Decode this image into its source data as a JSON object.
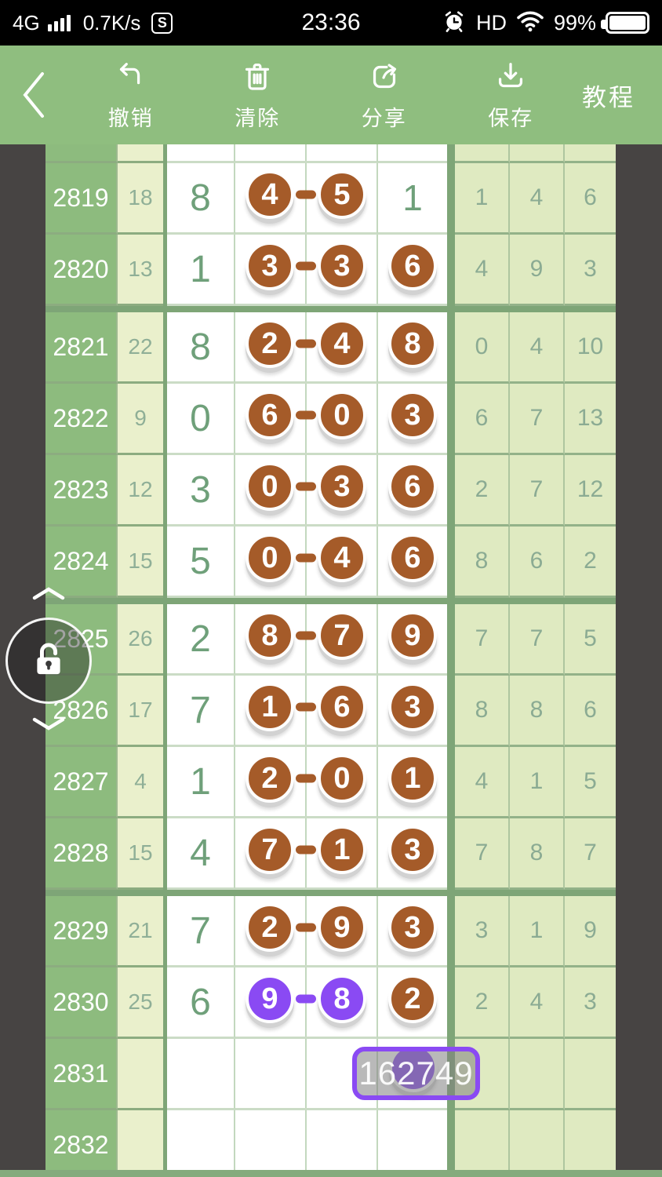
{
  "status_bar": {
    "network": "4G",
    "speed": "0.7K/s",
    "sim_badge": "S",
    "time": "23:36",
    "volte": "HD",
    "battery_percent": "99%"
  },
  "toolbar": {
    "buttons": [
      {
        "label": "撤销"
      },
      {
        "label": "清除"
      },
      {
        "label": "分享"
      },
      {
        "label": "保存"
      }
    ],
    "tutorial_label": "教程"
  },
  "colors": {
    "toolbar_green": "#8FBE7F",
    "period_green": "#8DBB7E",
    "count_bg": "#EAF0CC",
    "stats_bg": "#DFEAC1",
    "circle_brown": "#A55B29",
    "circle_purple": "#8A4AF3",
    "digit_green": "#6FA07A",
    "badge_border": "#8A4AF3",
    "app_background": "#474443"
  },
  "table": {
    "rows": [
      {
        "period": "2819",
        "count": "18",
        "first": "8",
        "pair": [
          "4",
          "5"
        ],
        "pair_style": "brown",
        "third": {
          "value": "1",
          "circled": false
        },
        "stats": [
          "1",
          "4",
          "6"
        ]
      },
      {
        "period": "2820",
        "count": "13",
        "first": "1",
        "pair": [
          "3",
          "3"
        ],
        "pair_style": "brown",
        "third": {
          "value": "6",
          "circled": true
        },
        "stats": [
          "4",
          "9",
          "3"
        ]
      },
      {
        "period": "2821",
        "count": "22",
        "first": "8",
        "pair": [
          "2",
          "4"
        ],
        "pair_style": "brown",
        "third": {
          "value": "8",
          "circled": true
        },
        "stats": [
          "0",
          "4",
          "10"
        ],
        "thick_before": true
      },
      {
        "period": "2822",
        "count": "9",
        "first": "0",
        "pair": [
          "6",
          "0"
        ],
        "pair_style": "brown",
        "third": {
          "value": "3",
          "circled": true
        },
        "stats": [
          "6",
          "7",
          "13"
        ]
      },
      {
        "period": "2823",
        "count": "12",
        "first": "3",
        "pair": [
          "0",
          "3"
        ],
        "pair_style": "brown",
        "third": {
          "value": "6",
          "circled": true
        },
        "stats": [
          "2",
          "7",
          "12"
        ]
      },
      {
        "period": "2824",
        "count": "15",
        "first": "5",
        "pair": [
          "0",
          "4"
        ],
        "pair_style": "brown",
        "third": {
          "value": "6",
          "circled": true
        },
        "stats": [
          "8",
          "6",
          "2"
        ]
      },
      {
        "period": "2825",
        "count": "26",
        "first": "2",
        "pair": [
          "8",
          "7"
        ],
        "pair_style": "brown",
        "third": {
          "value": "9",
          "circled": true
        },
        "stats": [
          "7",
          "7",
          "5"
        ],
        "thick_before": true
      },
      {
        "period": "2826",
        "count": "17",
        "first": "7",
        "pair": [
          "1",
          "6"
        ],
        "pair_style": "brown",
        "third": {
          "value": "3",
          "circled": true
        },
        "stats": [
          "8",
          "8",
          "6"
        ]
      },
      {
        "period": "2827",
        "count": "4",
        "first": "1",
        "pair": [
          "2",
          "0"
        ],
        "pair_style": "brown",
        "third": {
          "value": "1",
          "circled": true
        },
        "stats": [
          "4",
          "1",
          "5"
        ]
      },
      {
        "period": "2828",
        "count": "15",
        "first": "4",
        "pair": [
          "7",
          "1"
        ],
        "pair_style": "brown",
        "third": {
          "value": "3",
          "circled": true
        },
        "stats": [
          "7",
          "8",
          "7"
        ]
      },
      {
        "period": "2829",
        "count": "21",
        "first": "7",
        "pair": [
          "2",
          "9"
        ],
        "pair_style": "brown",
        "third": {
          "value": "3",
          "circled": true
        },
        "stats": [
          "3",
          "1",
          "9"
        ],
        "thick_before": true
      },
      {
        "period": "2830",
        "count": "25",
        "first": "6",
        "pair": [
          "9",
          "8"
        ],
        "pair_style": "purple",
        "third": {
          "value": "2",
          "circled": true
        },
        "stats": [
          "2",
          "4",
          "3"
        ]
      },
      {
        "period": "2831",
        "count": "",
        "first": "",
        "pair": null,
        "third": null,
        "stats": [
          "",
          "",
          ""
        ],
        "badge": "162749",
        "hidden_circle": true
      },
      {
        "period": "2832",
        "count": "",
        "first": "",
        "pair": null,
        "third": null,
        "stats": [
          "",
          "",
          ""
        ]
      }
    ]
  }
}
